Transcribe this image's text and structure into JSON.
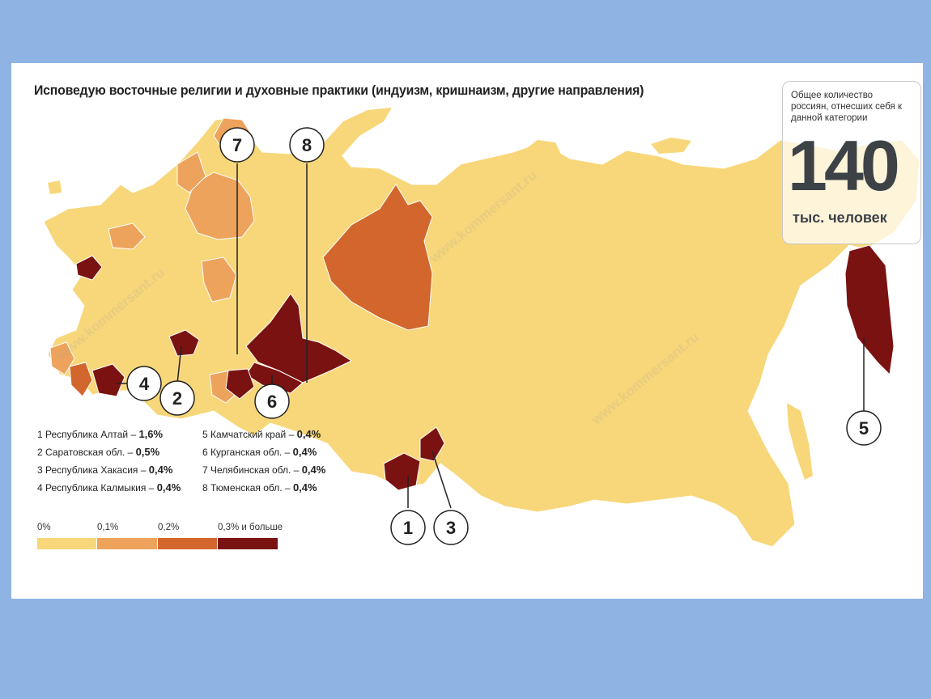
{
  "title": "Исповедую восточные религии и духовные практики (индуизм, кришнаизм, другие направления)",
  "total": {
    "caption": "Общее количество россиян, отнесших себя к данной категории",
    "number": "140",
    "unit": "тыс. человек"
  },
  "regions": [
    {
      "num": "1",
      "name": "1 Республика Алтай",
      "value": "1,6%",
      "category": "0.3"
    },
    {
      "num": "2",
      "name": "2 Саратовская обл.",
      "value": "0,5%",
      "category": "0.3"
    },
    {
      "num": "3",
      "name": "3 Республика Хакасия",
      "value": "0,4%",
      "category": "0.3"
    },
    {
      "num": "4",
      "name": "4 Республика Калмыкия",
      "value": "0,4%",
      "category": "0.3"
    },
    {
      "num": "5",
      "name": "5 Камчатский край",
      "value": "0,4%",
      "category": "0.3"
    },
    {
      "num": "6",
      "name": "6 Курганская обл.",
      "value": "0,4%",
      "category": "0.3"
    },
    {
      "num": "7",
      "name": "7 Челябинская обл.",
      "value": "0,4%",
      "category": "0.3"
    },
    {
      "num": "8",
      "name": "8 Тюменская обл.",
      "value": "0,4%",
      "category": "0.3"
    }
  ],
  "legend": [
    {
      "label": "0%",
      "color": "#f7d77a"
    },
    {
      "label": "0,1%",
      "color": "#eda35c"
    },
    {
      "label": "0,2%",
      "color": "#d2662d"
    },
    {
      "label": "0,3% и больше",
      "color": "#7a1212"
    }
  ],
  "watermark": "www.kommersant.ru"
}
